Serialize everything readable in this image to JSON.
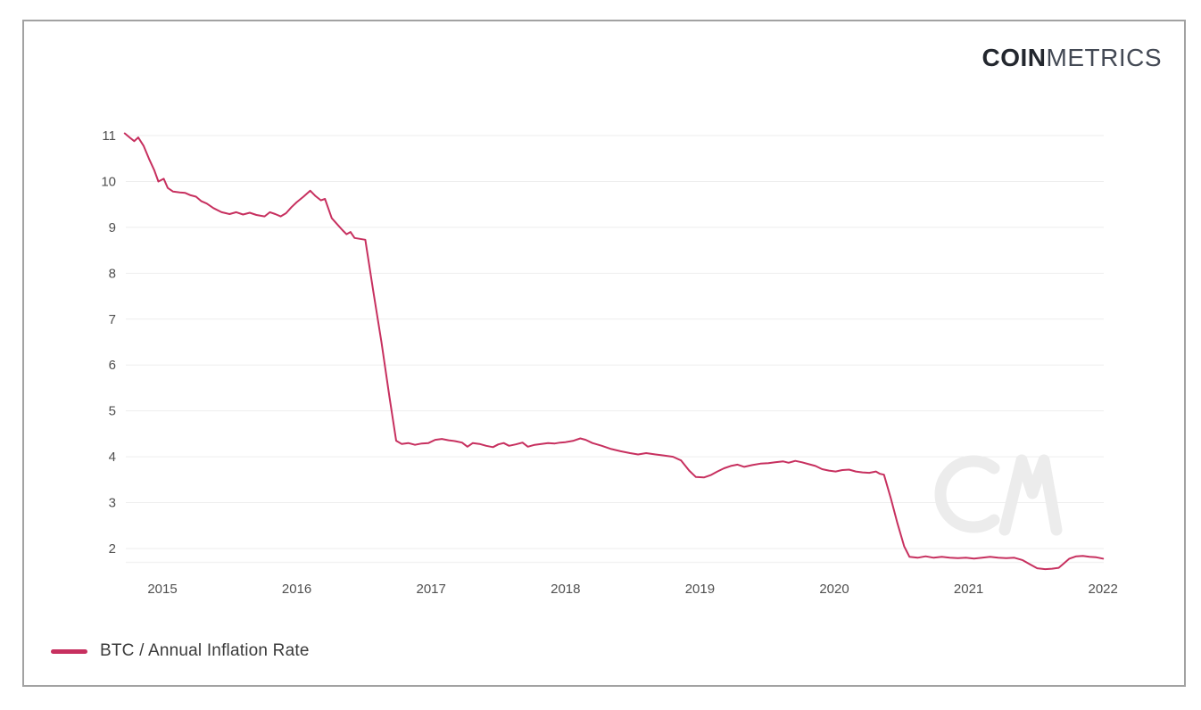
{
  "logo": {
    "part_bold": "COIN",
    "part_light": "METRICS"
  },
  "legend": {
    "items": [
      {
        "label": "BTC / Annual Inflation Rate",
        "color": "#c7305f"
      }
    ]
  },
  "colors": {
    "line": "#c7305f",
    "grid": "#eeeeee",
    "axis_baseline": "#f3f3f3",
    "tick_text": "#4f4f4f",
    "frame_border": "#a2a2a2",
    "watermark": "#ececec",
    "logo_bold": "#23272e",
    "logo_light": "#434954"
  },
  "chart_data": {
    "type": "line",
    "title": "BTC / Annual Inflation Rate",
    "xlabel": "",
    "ylabel": "",
    "grid": true,
    "legend_position": "bottom-left",
    "x_range": [
      2014.72,
      2022.01
    ],
    "ylim_gridlines": [
      2,
      11
    ],
    "x_tick_values": [
      2015,
      2016,
      2017,
      2018,
      2019,
      2020,
      2021,
      2022
    ],
    "x_tick_labels": [
      "2015",
      "2016",
      "2017",
      "2018",
      "2019",
      "2020",
      "2021",
      "2022"
    ],
    "y_tick_values": [
      2,
      3,
      4,
      5,
      6,
      7,
      8,
      9,
      10,
      11
    ],
    "series": [
      {
        "name": "BTC / Annual Inflation Rate",
        "color": "#c7305f",
        "points": [
          [
            2014.72,
            11.05
          ],
          [
            2014.76,
            10.95
          ],
          [
            2014.79,
            10.88
          ],
          [
            2014.82,
            10.96
          ],
          [
            2014.86,
            10.78
          ],
          [
            2014.9,
            10.5
          ],
          [
            2014.94,
            10.24
          ],
          [
            2014.97,
            10.0
          ],
          [
            2015.01,
            10.06
          ],
          [
            2015.04,
            9.86
          ],
          [
            2015.08,
            9.78
          ],
          [
            2015.13,
            9.76
          ],
          [
            2015.17,
            9.75
          ],
          [
            2015.21,
            9.7
          ],
          [
            2015.25,
            9.67
          ],
          [
            2015.29,
            9.57
          ],
          [
            2015.33,
            9.52
          ],
          [
            2015.38,
            9.42
          ],
          [
            2015.44,
            9.33
          ],
          [
            2015.5,
            9.29
          ],
          [
            2015.55,
            9.33
          ],
          [
            2015.6,
            9.28
          ],
          [
            2015.65,
            9.32
          ],
          [
            2015.7,
            9.27
          ],
          [
            2015.76,
            9.24
          ],
          [
            2015.8,
            9.33
          ],
          [
            2015.84,
            9.29
          ],
          [
            2015.88,
            9.24
          ],
          [
            2015.92,
            9.31
          ],
          [
            2015.96,
            9.44
          ],
          [
            2016.0,
            9.55
          ],
          [
            2016.05,
            9.67
          ],
          [
            2016.1,
            9.8
          ],
          [
            2016.14,
            9.68
          ],
          [
            2016.18,
            9.59
          ],
          [
            2016.21,
            9.62
          ],
          [
            2016.26,
            9.2
          ],
          [
            2016.3,
            9.07
          ],
          [
            2016.34,
            8.94
          ],
          [
            2016.37,
            8.85
          ],
          [
            2016.4,
            8.9
          ],
          [
            2016.43,
            8.77
          ],
          [
            2016.47,
            8.75
          ],
          [
            2016.51,
            8.73
          ],
          [
            2016.57,
            7.6
          ],
          [
            2016.63,
            6.5
          ],
          [
            2016.69,
            5.3
          ],
          [
            2016.74,
            4.35
          ],
          [
            2016.78,
            4.28
          ],
          [
            2016.83,
            4.3
          ],
          [
            2016.88,
            4.26
          ],
          [
            2016.93,
            4.29
          ],
          [
            2016.98,
            4.3
          ],
          [
            2017.03,
            4.37
          ],
          [
            2017.08,
            4.39
          ],
          [
            2017.13,
            4.36
          ],
          [
            2017.18,
            4.34
          ],
          [
            2017.23,
            4.31
          ],
          [
            2017.27,
            4.22
          ],
          [
            2017.31,
            4.3
          ],
          [
            2017.36,
            4.28
          ],
          [
            2017.41,
            4.24
          ],
          [
            2017.46,
            4.21
          ],
          [
            2017.5,
            4.27
          ],
          [
            2017.54,
            4.3
          ],
          [
            2017.58,
            4.24
          ],
          [
            2017.63,
            4.27
          ],
          [
            2017.68,
            4.31
          ],
          [
            2017.72,
            4.22
          ],
          [
            2017.77,
            4.26
          ],
          [
            2017.82,
            4.28
          ],
          [
            2017.87,
            4.3
          ],
          [
            2017.92,
            4.29
          ],
          [
            2017.96,
            4.31
          ],
          [
            2018.0,
            4.32
          ],
          [
            2018.06,
            4.35
          ],
          [
            2018.11,
            4.4
          ],
          [
            2018.15,
            4.37
          ],
          [
            2018.2,
            4.3
          ],
          [
            2018.27,
            4.24
          ],
          [
            2018.34,
            4.17
          ],
          [
            2018.41,
            4.12
          ],
          [
            2018.48,
            4.08
          ],
          [
            2018.54,
            4.05
          ],
          [
            2018.6,
            4.08
          ],
          [
            2018.67,
            4.05
          ],
          [
            2018.73,
            4.03
          ],
          [
            2018.8,
            4.0
          ],
          [
            2018.86,
            3.92
          ],
          [
            2018.92,
            3.7
          ],
          [
            2018.97,
            3.56
          ],
          [
            2019.03,
            3.55
          ],
          [
            2019.08,
            3.6
          ],
          [
            2019.13,
            3.68
          ],
          [
            2019.18,
            3.75
          ],
          [
            2019.23,
            3.8
          ],
          [
            2019.28,
            3.83
          ],
          [
            2019.33,
            3.78
          ],
          [
            2019.39,
            3.82
          ],
          [
            2019.45,
            3.85
          ],
          [
            2019.51,
            3.86
          ],
          [
            2019.56,
            3.88
          ],
          [
            2019.62,
            3.9
          ],
          [
            2019.66,
            3.87
          ],
          [
            2019.71,
            3.91
          ],
          [
            2019.76,
            3.88
          ],
          [
            2019.81,
            3.84
          ],
          [
            2019.86,
            3.8
          ],
          [
            2019.91,
            3.73
          ],
          [
            2019.96,
            3.7
          ],
          [
            2020.01,
            3.68
          ],
          [
            2020.06,
            3.71
          ],
          [
            2020.11,
            3.72
          ],
          [
            2020.16,
            3.68
          ],
          [
            2020.21,
            3.66
          ],
          [
            2020.26,
            3.65
          ],
          [
            2020.31,
            3.68
          ],
          [
            2020.34,
            3.63
          ],
          [
            2020.37,
            3.61
          ],
          [
            2020.42,
            3.1
          ],
          [
            2020.47,
            2.55
          ],
          [
            2020.52,
            2.05
          ],
          [
            2020.56,
            1.82
          ],
          [
            2020.62,
            1.8
          ],
          [
            2020.68,
            1.83
          ],
          [
            2020.74,
            1.8
          ],
          [
            2020.8,
            1.82
          ],
          [
            2020.86,
            1.8
          ],
          [
            2020.92,
            1.79
          ],
          [
            2020.98,
            1.8
          ],
          [
            2021.04,
            1.78
          ],
          [
            2021.1,
            1.8
          ],
          [
            2021.16,
            1.82
          ],
          [
            2021.22,
            1.8
          ],
          [
            2021.28,
            1.79
          ],
          [
            2021.34,
            1.8
          ],
          [
            2021.4,
            1.75
          ],
          [
            2021.46,
            1.65
          ],
          [
            2021.51,
            1.57
          ],
          [
            2021.57,
            1.55
          ],
          [
            2021.62,
            1.56
          ],
          [
            2021.67,
            1.58
          ],
          [
            2021.71,
            1.68
          ],
          [
            2021.75,
            1.78
          ],
          [
            2021.8,
            1.83
          ],
          [
            2021.85,
            1.84
          ],
          [
            2021.9,
            1.82
          ],
          [
            2021.95,
            1.81
          ],
          [
            2022.0,
            1.78
          ]
        ]
      }
    ]
  }
}
